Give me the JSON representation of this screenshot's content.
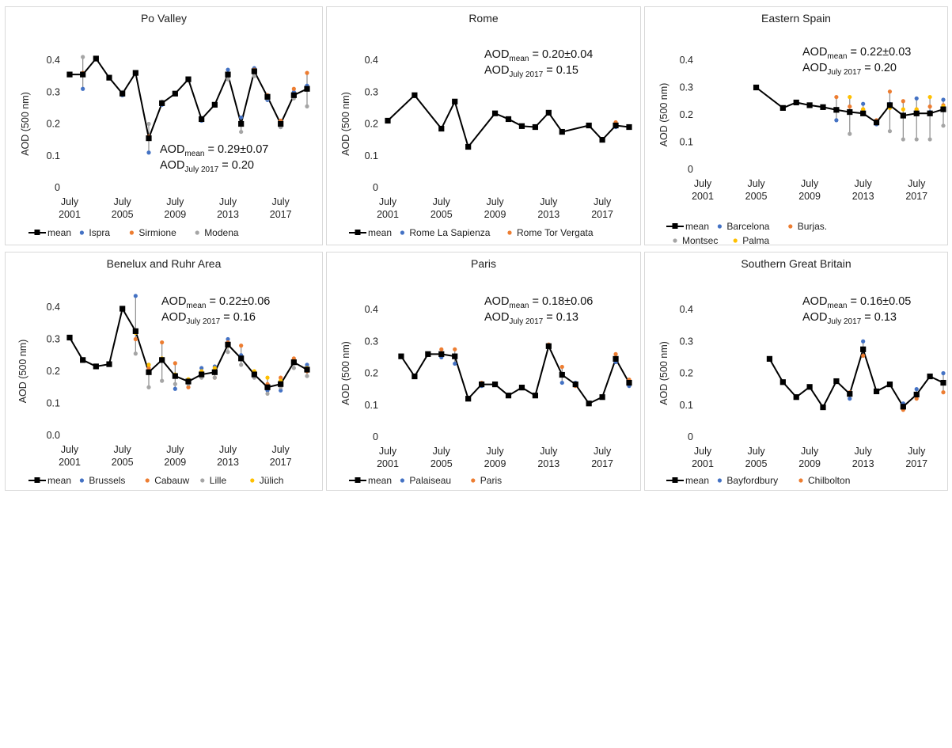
{
  "chart_data": [
    {
      "type": "line",
      "title": "Po Valley",
      "ylabel": "AOD (500 nm)",
      "ylim": [
        0,
        0.4
      ],
      "yticks": [
        "0",
        "0.1",
        "0.2",
        "0.3",
        "0.4"
      ],
      "x": [
        2001,
        2002,
        2003,
        2004,
        2005,
        2006,
        2007,
        2008,
        2009,
        2010,
        2011,
        2012,
        2013,
        2014,
        2015,
        2016,
        2017,
        2018,
        2019
      ],
      "xticks": [
        {
          "year": 2001,
          "line1": "July",
          "line2": "2001"
        },
        {
          "year": 2005,
          "line1": "July",
          "line2": "2005"
        },
        {
          "year": 2009,
          "line1": "July",
          "line2": "2009"
        },
        {
          "year": 2013,
          "line1": "July",
          "line2": "2013"
        },
        {
          "year": 2017,
          "line1": "July",
          "line2": "2017"
        }
      ],
      "series": [
        {
          "name": "mean",
          "color": "#000000",
          "values": [
            0.355,
            0.355,
            0.405,
            0.345,
            0.295,
            0.36,
            0.155,
            0.265,
            0.295,
            0.34,
            0.215,
            0.26,
            0.355,
            0.2,
            0.365,
            0.285,
            0.2,
            0.29,
            0.31
          ]
        },
        {
          "name": "Ispra",
          "color": "#4472c4",
          "values": [
            0.355,
            0.31,
            0.405,
            0.345,
            0.29,
            0.36,
            0.11,
            0.26,
            0.295,
            0.34,
            0.21,
            0.26,
            0.37,
            0.22,
            0.375,
            0.275,
            0.19,
            0.3,
            0.32
          ]
        },
        {
          "name": "Sirmione",
          "color": "#ed7d31",
          "values": [
            0.355,
            0.36,
            0.405,
            0.345,
            0.295,
            0.36,
            0.16,
            0.265,
            0.295,
            0.34,
            0.215,
            0.26,
            0.355,
            0.2,
            0.37,
            0.29,
            0.21,
            0.31,
            0.36
          ]
        },
        {
          "name": "Modena",
          "color": "#a5a5a5",
          "values": [
            0.355,
            0.41,
            0.405,
            0.345,
            0.3,
            0.36,
            0.2,
            0.27,
            0.295,
            0.34,
            0.215,
            0.26,
            0.34,
            0.175,
            0.35,
            0.28,
            0.19,
            0.28,
            0.255
          ]
        }
      ],
      "annotation": {
        "mean_label": "AOD",
        "mean_sub": "mean",
        "mean_value": " = 0.29±0.07",
        "july_label": "AOD",
        "july_sub": "July 2017",
        "july_value": " = 0.20"
      }
    },
    {
      "type": "line",
      "title": "Rome",
      "ylabel": "AOD (500 nm)",
      "ylim": [
        0,
        0.4
      ],
      "yticks": [
        "0",
        "0.1",
        "0.2",
        "0.3",
        "0.4"
      ],
      "x": [
        2001,
        2003,
        2005,
        2006,
        2007,
        2009,
        2010,
        2011,
        2012,
        2013,
        2014,
        2016,
        2017,
        2018,
        2019
      ],
      "xticks": [
        {
          "year": 2001,
          "line1": "July",
          "line2": "2001"
        },
        {
          "year": 2005,
          "line1": "July",
          "line2": "2005"
        },
        {
          "year": 2009,
          "line1": "July",
          "line2": "2009"
        },
        {
          "year": 2013,
          "line1": "July",
          "line2": "2013"
        },
        {
          "year": 2017,
          "line1": "July",
          "line2": "2017"
        }
      ],
      "series": [
        {
          "name": "mean",
          "color": "#000000",
          "values": [
            0.21,
            0.29,
            0.185,
            0.27,
            0.128,
            0.233,
            0.215,
            0.193,
            0.19,
            0.235,
            0.175,
            0.195,
            0.15,
            0.195,
            0.19
          ]
        },
        {
          "name": "Rome La Sapienza",
          "color": "#4472c4",
          "values": [
            0.21,
            0.29,
            0.185,
            0.27,
            0.128,
            0.233,
            0.215,
            0.193,
            0.19,
            0.235,
            0.175,
            0.195,
            0.15,
            0.19,
            0.19
          ]
        },
        {
          "name": "Rome Tor Vergata",
          "color": "#ed7d31",
          "values": [
            0.21,
            0.29,
            0.185,
            0.27,
            0.128,
            0.233,
            0.215,
            0.193,
            0.19,
            0.235,
            0.175,
            0.195,
            0.15,
            0.205,
            0.19
          ]
        }
      ],
      "annotation": {
        "mean_label": "AOD",
        "mean_sub": "mean",
        "mean_value": " = 0.20±0.04",
        "july_label": "AOD",
        "july_sub": "July 2017",
        "july_value": " = 0.15"
      }
    },
    {
      "type": "line",
      "title": "Eastern Spain",
      "ylabel": "AOD (500 nm)",
      "ylim": [
        0,
        0.4
      ],
      "yticks": [
        "0",
        "0.1",
        "0.2",
        "0.3",
        "0.4"
      ],
      "x": [
        2005,
        2007,
        2008,
        2009,
        2010,
        2011,
        2012,
        2013,
        2014,
        2015,
        2016,
        2017,
        2018,
        2019
      ],
      "xticks": [
        {
          "year": 2001,
          "line1": "July",
          "line2": "2001"
        },
        {
          "year": 2005,
          "line1": "July",
          "line2": "2005"
        },
        {
          "year": 2009,
          "line1": "July",
          "line2": "2009"
        },
        {
          "year": 2013,
          "line1": "July",
          "line2": "2013"
        },
        {
          "year": 2017,
          "line1": "July",
          "line2": "2017"
        }
      ],
      "series": [
        {
          "name": "mean",
          "color": "#000000",
          "values": [
            0.3,
            0.225,
            0.245,
            0.235,
            0.228,
            0.218,
            0.21,
            0.205,
            0.172,
            0.235,
            0.197,
            0.205,
            0.205,
            0.22
          ]
        },
        {
          "name": "Barcelona",
          "color": "#4472c4",
          "values": [
            0.3,
            0.225,
            0.245,
            0.235,
            0.228,
            0.18,
            0.21,
            0.24,
            0.165,
            0.24,
            0.2,
            0.26,
            0.21,
            0.255
          ]
        },
        {
          "name": "Burjas.",
          "color": "#ed7d31",
          "values": [
            0.3,
            0.225,
            0.245,
            0.235,
            0.228,
            0.265,
            0.23,
            0.22,
            0.18,
            0.285,
            0.25,
            0.22,
            0.23,
            0.235
          ]
        },
        {
          "name": "Montsec",
          "color": "#a5a5a5",
          "values": [
            null,
            null,
            null,
            null,
            null,
            null,
            0.13,
            null,
            null,
            0.14,
            0.11,
            0.11,
            0.11,
            0.16
          ]
        },
        {
          "name": "Palma",
          "color": "#ffc000",
          "values": [
            null,
            null,
            null,
            null,
            null,
            0.215,
            0.265,
            0.22,
            0.17,
            0.225,
            0.22,
            0.22,
            0.265,
            0.23
          ]
        }
      ],
      "annotation": {
        "mean_label": "AOD",
        "mean_sub": "mean",
        "mean_value": " = 0.22±0.03",
        "july_label": "AOD",
        "july_sub": "July 2017",
        "july_value": " = 0.20"
      }
    },
    {
      "type": "line",
      "title": "Benelux and Ruhr Area",
      "ylabel": "AOD (500 nm)",
      "ylim": [
        0,
        0.4
      ],
      "yticks": [
        "0.0",
        "0.1",
        "0.2",
        "0.3",
        "0.4"
      ],
      "x": [
        2001,
        2002,
        2003,
        2004,
        2005,
        2006,
        2007,
        2008,
        2009,
        2010,
        2011,
        2012,
        2013,
        2014,
        2015,
        2016,
        2017,
        2018,
        2019
      ],
      "xticks": [
        {
          "year": 2001,
          "line1": "July",
          "line2": "2001"
        },
        {
          "year": 2005,
          "line1": "July",
          "line2": "2005"
        },
        {
          "year": 2009,
          "line1": "July",
          "line2": "2009"
        },
        {
          "year": 2013,
          "line1": "July",
          "line2": "2013"
        },
        {
          "year": 2017,
          "line1": "July",
          "line2": "2017"
        }
      ],
      "series": [
        {
          "name": "mean",
          "color": "#000000",
          "values": [
            0.305,
            0.235,
            0.215,
            0.222,
            0.395,
            0.325,
            0.197,
            0.235,
            0.185,
            0.168,
            0.19,
            0.197,
            0.283,
            0.24,
            0.19,
            0.15,
            0.16,
            0.228,
            0.205
          ]
        },
        {
          "name": "Brussels",
          "color": "#4472c4",
          "values": [
            0.305,
            0.235,
            0.215,
            0.222,
            0.395,
            0.435,
            0.22,
            0.235,
            0.145,
            0.17,
            0.21,
            0.215,
            0.3,
            0.25,
            0.19,
            0.14,
            0.14,
            0.23,
            0.22
          ]
        },
        {
          "name": "Cabauw",
          "color": "#ed7d31",
          "values": [
            0.305,
            0.235,
            0.215,
            0.222,
            0.395,
            0.3,
            0.21,
            0.29,
            0.225,
            0.15,
            0.19,
            0.18,
            0.29,
            0.28,
            0.19,
            0.16,
            0.18,
            0.24,
            0.2
          ]
        },
        {
          "name": "Lille",
          "color": "#a5a5a5",
          "values": [
            null,
            null,
            null,
            null,
            null,
            0.255,
            0.15,
            0.17,
            0.16,
            0.16,
            0.18,
            0.18,
            0.26,
            0.22,
            0.18,
            0.13,
            0.15,
            0.21,
            0.185
          ]
        },
        {
          "name": "Jülich",
          "color": "#ffc000",
          "values": [
            null,
            null,
            null,
            null,
            null,
            0.32,
            0.22,
            0.24,
            0.19,
            0.175,
            0.2,
            0.21,
            0.28,
            0.24,
            0.2,
            0.18,
            0.17,
            0.23,
            0.21
          ]
        }
      ],
      "annotation": {
        "mean_label": "AOD",
        "mean_sub": "mean",
        "mean_value": " = 0.22±0.06",
        "july_label": "AOD",
        "july_sub": "July 2017",
        "july_value": " = 0.16"
      }
    },
    {
      "type": "line",
      "title": "Paris",
      "ylabel": "AOD (500 nm)",
      "ylim": [
        0,
        0.4
      ],
      "yticks": [
        "0",
        "0.1",
        "0.2",
        "0.3",
        "0.4"
      ],
      "x": [
        2002,
        2003,
        2004,
        2005,
        2006,
        2007,
        2008,
        2009,
        2010,
        2011,
        2012,
        2013,
        2014,
        2015,
        2016,
        2017,
        2018,
        2019
      ],
      "xticks": [
        {
          "year": 2001,
          "line1": "July",
          "line2": "2001"
        },
        {
          "year": 2005,
          "line1": "July",
          "line2": "2005"
        },
        {
          "year": 2009,
          "line1": "July",
          "line2": "2009"
        },
        {
          "year": 2013,
          "line1": "July",
          "line2": "2013"
        },
        {
          "year": 2017,
          "line1": "July",
          "line2": "2017"
        }
      ],
      "series": [
        {
          "name": "mean",
          "color": "#000000",
          "values": [
            0.253,
            0.19,
            0.26,
            0.26,
            0.253,
            0.12,
            0.165,
            0.165,
            0.13,
            0.155,
            0.13,
            0.285,
            0.195,
            0.165,
            0.105,
            0.125,
            0.245,
            0.17
          ]
        },
        {
          "name": "Palaiseau",
          "color": "#4472c4",
          "values": [
            0.253,
            0.19,
            0.26,
            0.25,
            0.23,
            0.12,
            0.16,
            0.165,
            0.13,
            0.155,
            0.13,
            0.285,
            0.17,
            0.17,
            0.105,
            0.125,
            0.235,
            0.16
          ]
        },
        {
          "name": "Paris",
          "color": "#ed7d31",
          "values": [
            0.253,
            0.19,
            0.26,
            0.275,
            0.275,
            0.12,
            0.17,
            0.165,
            0.13,
            0.155,
            0.13,
            0.29,
            0.22,
            0.16,
            0.105,
            0.125,
            0.26,
            0.18
          ]
        }
      ],
      "annotation": {
        "mean_label": "AOD",
        "mean_sub": "mean",
        "mean_value": " = 0.18±0.06",
        "july_label": "AOD",
        "july_sub": "July 2017",
        "july_value": " = 0.13"
      }
    },
    {
      "type": "line",
      "title": "Southern Great Britain",
      "ylabel": "AOD (500 nm)",
      "ylim": [
        0,
        0.4
      ],
      "yticks": [
        "0",
        "0.1",
        "0.2",
        "0.3",
        "0.4"
      ],
      "x": [
        2006,
        2007,
        2008,
        2009,
        2010,
        2011,
        2012,
        2013,
        2014,
        2015,
        2016,
        2017,
        2018,
        2019
      ],
      "xticks": [
        {
          "year": 2001,
          "line1": "July",
          "line2": "2001"
        },
        {
          "year": 2005,
          "line1": "July",
          "line2": "2005"
        },
        {
          "year": 2009,
          "line1": "July",
          "line2": "2009"
        },
        {
          "year": 2013,
          "line1": "July",
          "line2": "2013"
        },
        {
          "year": 2017,
          "line1": "July",
          "line2": "2017"
        }
      ],
      "series": [
        {
          "name": "mean",
          "color": "#000000",
          "values": [
            0.245,
            0.172,
            0.125,
            0.157,
            0.093,
            0.175,
            0.135,
            0.275,
            0.143,
            0.165,
            0.095,
            0.133,
            0.19,
            0.17
          ]
        },
        {
          "name": "Bayfordbury",
          "color": "#4472c4",
          "values": [
            0.245,
            0.172,
            0.125,
            0.157,
            0.093,
            0.175,
            0.12,
            0.3,
            0.143,
            0.165,
            0.105,
            0.15,
            0.19,
            0.2
          ]
        },
        {
          "name": "Chilbolton",
          "color": "#ed7d31",
          "values": [
            0.245,
            0.172,
            0.125,
            0.157,
            0.093,
            0.175,
            0.14,
            0.255,
            0.143,
            0.165,
            0.085,
            0.12,
            0.19,
            0.14
          ]
        }
      ],
      "annotation": {
        "mean_label": "AOD",
        "mean_sub": "mean",
        "mean_value": " = 0.16±0.05",
        "july_label": "AOD",
        "july_sub": "July 2017",
        "july_value": " = 0.13"
      }
    }
  ]
}
